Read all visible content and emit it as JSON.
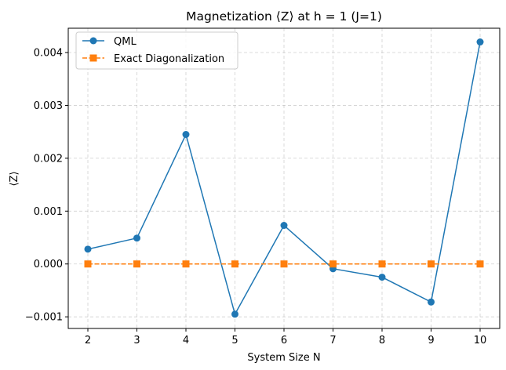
{
  "chart_data": {
    "type": "line",
    "title": "Magnetization ⟨Z⟩ at h = 1 (J=1)",
    "xlabel": "System Size N",
    "ylabel": "⟨Z⟩",
    "x": [
      2,
      3,
      4,
      5,
      6,
      7,
      8,
      9,
      10
    ],
    "xticks": [
      "2",
      "3",
      "4",
      "5",
      "6",
      "7",
      "8",
      "9",
      "10"
    ],
    "yticks": [
      -0.001,
      0.0,
      0.001,
      0.002,
      0.003,
      0.004
    ],
    "ytick_labels": [
      "−0.001",
      "0.000",
      "0.001",
      "0.002",
      "0.003",
      "0.004"
    ],
    "xlim": [
      1.6,
      10.4
    ],
    "ylim": [
      -0.00122,
      0.00446
    ],
    "grid": true,
    "legend_position": "upper-left",
    "series": [
      {
        "name": "QML",
        "values": [
          0.00028,
          0.00049,
          0.00245,
          -0.00095,
          0.00073,
          -9e-05,
          -0.00025,
          -0.00072,
          0.0042
        ],
        "color": "#1f77b4",
        "marker": "circle",
        "linestyle": "solid"
      },
      {
        "name": "Exact Diagonalization",
        "values": [
          0,
          0,
          0,
          0,
          0,
          0,
          0,
          0,
          0
        ],
        "color": "#ff7f0e",
        "marker": "square",
        "linestyle": "dashed"
      }
    ]
  }
}
